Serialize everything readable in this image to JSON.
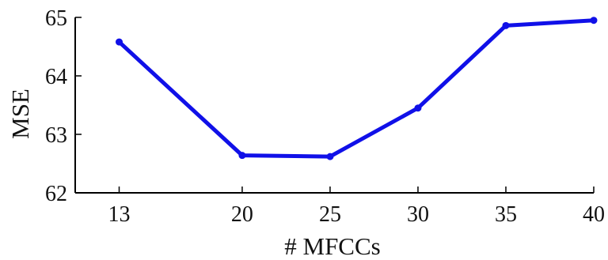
{
  "chart_data": {
    "type": "line",
    "xlabel": "# MFCCs",
    "ylabel": "MSE",
    "categories": [
      "13",
      "20",
      "25",
      "30",
      "35",
      "40"
    ],
    "x": [
      13,
      20,
      25,
      30,
      35,
      40
    ],
    "xlim": [
      10.5,
      40
    ],
    "ylim": [
      62,
      65
    ],
    "yticks": [
      "62",
      "63",
      "64",
      "65"
    ],
    "series": [
      {
        "values": [
          64.58,
          62.64,
          62.62,
          63.45,
          64.86,
          64.95
        ],
        "color": "#1010e8"
      }
    ],
    "grid": false,
    "legend": "none"
  }
}
